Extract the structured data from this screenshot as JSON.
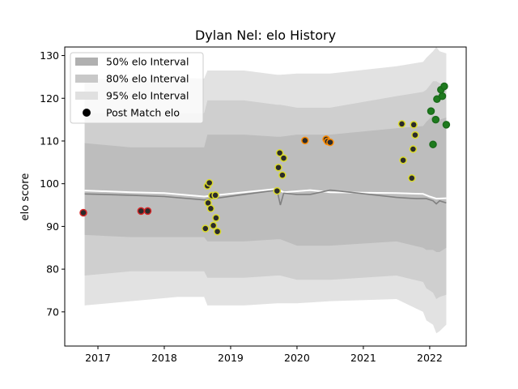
{
  "chart_data": {
    "type": "scatter",
    "title": "Dylan Nel: elo History",
    "xlabel": "",
    "ylabel": "elo score",
    "xlim": [
      2016.5,
      2022.55
    ],
    "ylim": [
      62,
      132
    ],
    "xticks": [
      2017,
      2018,
      2019,
      2020,
      2021,
      2022
    ],
    "yticks": [
      70,
      80,
      90,
      100,
      110,
      120,
      130
    ],
    "grid": false,
    "legend_placement": "top-left",
    "legend": [
      {
        "label": "50% elo Interval",
        "kind": "patch",
        "color": "#b0b0b0"
      },
      {
        "label": "80% elo Interval",
        "kind": "patch",
        "color": "#c8c8c8"
      },
      {
        "label": "95% elo Interval",
        "kind": "patch",
        "color": "#e0e0e0"
      },
      {
        "label": "Post Match elo",
        "kind": "marker",
        "color": "#000000"
      }
    ],
    "colors": {
      "band95": "#e2e2e2",
      "band80": "#cfcfcf",
      "band50": "#bdbdbd",
      "mean_line": "#808080",
      "median_line": "#ffffff",
      "marker_face": "#2b2b2b"
    },
    "bands": {
      "x": [
        2016.8,
        2017.5,
        2018.2,
        2018.6,
        2018.65,
        2019.2,
        2019.7,
        2019.75,
        2020.0,
        2020.5,
        2021.5,
        2021.9,
        2021.95,
        2022.05,
        2022.1,
        2022.15,
        2022.25
      ],
      "p95_upper": [
        124.5,
        124.5,
        124.8,
        124.6,
        126.5,
        126.5,
        125.5,
        125.5,
        125.8,
        125.8,
        127.5,
        128.5,
        129.5,
        131.0,
        132.0,
        131.0,
        130.5
      ],
      "p95_lower": [
        71.5,
        72.5,
        73.5,
        73.5,
        71.5,
        71.5,
        72.0,
        72.0,
        72.0,
        72.5,
        73.0,
        70.0,
        68.0,
        67.0,
        65.0,
        65.5,
        67.0
      ],
      "p80_upper": [
        116.5,
        116.5,
        116.5,
        116.5,
        119.5,
        119.5,
        118.5,
        118.5,
        117.8,
        117.8,
        120.5,
        121.5,
        122.0,
        124.0,
        124.0,
        123.5,
        123.0
      ],
      "p80_lower": [
        78.5,
        79.5,
        79.5,
        79.5,
        78.0,
        78.0,
        78.5,
        78.5,
        77.5,
        77.5,
        78.5,
        77.0,
        75.5,
        74.5,
        73.0,
        73.5,
        74.0
      ],
      "p50_upper": [
        109.5,
        108.5,
        108.5,
        108.5,
        111.5,
        111.5,
        111.0,
        111.0,
        111.5,
        111.5,
        113.0,
        113.5,
        114.5,
        116.0,
        115.5,
        115.0,
        115.5
      ],
      "p50_lower": [
        88.0,
        87.5,
        87.5,
        87.5,
        86.5,
        86.5,
        87.0,
        87.0,
        85.5,
        85.5,
        86.5,
        85.0,
        84.5,
        84.5,
        84.0,
        84.0,
        85.0
      ]
    },
    "mean_line": {
      "x": [
        2016.8,
        2017.5,
        2018.0,
        2018.6,
        2019.2,
        2019.7,
        2019.75,
        2019.8,
        2020.0,
        2020.2,
        2020.5,
        2020.8,
        2021.5,
        2021.8,
        2021.95,
        2022.05,
        2022.1,
        2022.15,
        2022.25
      ],
      "y": [
        97.6,
        97.3,
        97.0,
        96.2,
        97.5,
        98.5,
        95.0,
        97.8,
        97.5,
        97.5,
        98.5,
        98.0,
        96.8,
        96.5,
        96.5,
        96.0,
        95.3,
        96.0,
        95.5
      ]
    },
    "median_line": {
      "x": [
        2016.8,
        2017.5,
        2018.0,
        2018.6,
        2019.2,
        2019.7,
        2019.8,
        2020.2,
        2020.5,
        2021.5,
        2021.9,
        2022.0,
        2022.1,
        2022.25
      ],
      "y": [
        98.4,
        98.0,
        97.8,
        97.0,
        98.0,
        98.8,
        98.0,
        98.5,
        98.0,
        97.8,
        97.6,
        97.0,
        96.5,
        96.6
      ]
    },
    "points": [
      {
        "x": 2016.78,
        "y": 93.2,
        "edge": "#d62728"
      },
      {
        "x": 2017.65,
        "y": 93.6,
        "edge": "#d62728"
      },
      {
        "x": 2017.75,
        "y": 93.6,
        "edge": "#d62728"
      },
      {
        "x": 2018.62,
        "y": 89.5,
        "edge": "#dbdb2c"
      },
      {
        "x": 2018.65,
        "y": 99.5,
        "edge": "#dbdb2c"
      },
      {
        "x": 2018.68,
        "y": 100.2,
        "edge": "#dbdb2c"
      },
      {
        "x": 2018.66,
        "y": 95.5,
        "edge": "#dbdb2c"
      },
      {
        "x": 2018.7,
        "y": 94.2,
        "edge": "#dbdb2c"
      },
      {
        "x": 2018.72,
        "y": 97.2,
        "edge": "#dbdb2c"
      },
      {
        "x": 2018.74,
        "y": 90.2,
        "edge": "#dbdb2c"
      },
      {
        "x": 2018.77,
        "y": 97.3,
        "edge": "#dbdb2c"
      },
      {
        "x": 2018.78,
        "y": 92.0,
        "edge": "#dbdb2c"
      },
      {
        "x": 2018.8,
        "y": 88.8,
        "edge": "#dbdb2c"
      },
      {
        "x": 2019.7,
        "y": 98.3,
        "edge": "#dbdb2c"
      },
      {
        "x": 2019.72,
        "y": 103.8,
        "edge": "#dbdb2c"
      },
      {
        "x": 2019.74,
        "y": 107.2,
        "edge": "#dbdb2c"
      },
      {
        "x": 2019.78,
        "y": 102.0,
        "edge": "#dbdb2c"
      },
      {
        "x": 2019.8,
        "y": 106.0,
        "edge": "#dbdb2c"
      },
      {
        "x": 2020.12,
        "y": 110.1,
        "edge": "#ff8c00"
      },
      {
        "x": 2020.44,
        "y": 110.4,
        "edge": "#ff8c00"
      },
      {
        "x": 2020.46,
        "y": 109.9,
        "edge": "#ff8c00"
      },
      {
        "x": 2020.5,
        "y": 109.7,
        "edge": "#ff8c00"
      },
      {
        "x": 2021.58,
        "y": 114.0,
        "edge": "#dbdb2c"
      },
      {
        "x": 2021.6,
        "y": 105.5,
        "edge": "#dbdb2c"
      },
      {
        "x": 2021.73,
        "y": 101.3,
        "edge": "#dbdb2c"
      },
      {
        "x": 2021.75,
        "y": 108.1,
        "edge": "#dbdb2c"
      },
      {
        "x": 2021.76,
        "y": 113.8,
        "edge": "#dbdb2c"
      },
      {
        "x": 2021.78,
        "y": 111.4,
        "edge": "#dbdb2c"
      },
      {
        "x": 2022.02,
        "y": 117.0,
        "edge": "#1a6b1a"
      },
      {
        "x": 2022.05,
        "y": 109.2,
        "edge": "#1a6b1a"
      },
      {
        "x": 2022.09,
        "y": 115.0,
        "edge": "#1a6b1a"
      },
      {
        "x": 2022.11,
        "y": 119.8,
        "edge": "#1a6b1a"
      },
      {
        "x": 2022.17,
        "y": 122.0,
        "edge": "#1a6b1a"
      },
      {
        "x": 2022.19,
        "y": 120.5,
        "edge": "#1a6b1a"
      },
      {
        "x": 2022.22,
        "y": 122.8,
        "edge": "#1a6b1a"
      },
      {
        "x": 2022.25,
        "y": 113.8,
        "edge": "#1a6b1a"
      }
    ],
    "green_face": "#1e7b1e"
  }
}
